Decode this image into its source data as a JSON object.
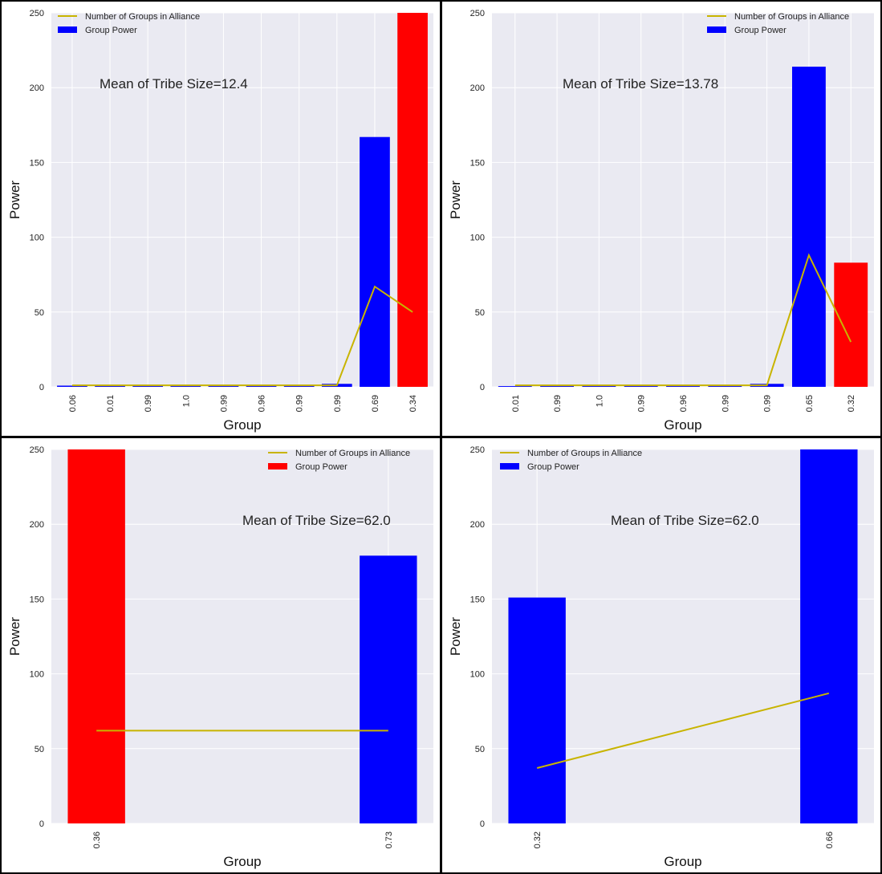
{
  "chart_data": [
    {
      "type": "bar",
      "xlabel": "Group",
      "ylabel": "Power",
      "ylim": [
        0,
        250
      ],
      "yticks": [
        "0",
        "50",
        "100",
        "150",
        "200",
        "250"
      ],
      "grid": true,
      "legend_position": "top-left",
      "annotation": "Mean of Tribe Size=12.4",
      "categories": [
        "0.06",
        "0.01",
        "0.99",
        "1.0",
        "0.99",
        "0.96",
        "0.99",
        "0.99",
        "0.69",
        "0.34"
      ],
      "series": [
        {
          "name": "Group Power",
          "kind": "bar",
          "values": [
            0.8,
            1.0,
            1.0,
            1.0,
            1.0,
            1.0,
            1.0,
            2.0,
            167,
            250
          ],
          "colors": [
            "#0000ff",
            "#0000ff",
            "#0000ff",
            "#0000ff",
            "#0000ff",
            "#0000ff",
            "#0000ff",
            "#0000ff",
            "#0000ff",
            "#ff0000"
          ]
        },
        {
          "name": "Number of Groups in Alliance",
          "kind": "line",
          "color": "#c8b400",
          "values": [
            1,
            1,
            1,
            1,
            1,
            1,
            1,
            1,
            67,
            50
          ]
        }
      ],
      "legend": [
        {
          "label": "Number of Groups in Alliance",
          "kind": "line",
          "color": "#c8b400"
        },
        {
          "label": "Group Power",
          "kind": "patch",
          "color": "#0000ff"
        }
      ]
    },
    {
      "type": "bar",
      "xlabel": "Group",
      "ylabel": "Power",
      "ylim": [
        0,
        250
      ],
      "yticks": [
        "0",
        "50",
        "100",
        "150",
        "200",
        "250"
      ],
      "grid": true,
      "legend_position": "top-right",
      "annotation": "Mean of Tribe Size=13.78",
      "categories": [
        "0.01",
        "0.99",
        "1.0",
        "0.99",
        "0.96",
        "0.99",
        "0.99",
        "0.65",
        "0.32"
      ],
      "series": [
        {
          "name": "Group Power",
          "kind": "bar",
          "values": [
            0.5,
            1.0,
            1.0,
            1.0,
            1.0,
            1.0,
            2.0,
            214,
            83
          ],
          "colors": [
            "#0000ff",
            "#0000ff",
            "#0000ff",
            "#0000ff",
            "#0000ff",
            "#0000ff",
            "#0000ff",
            "#0000ff",
            "#ff0000"
          ]
        },
        {
          "name": "Number of Groups in Alliance",
          "kind": "line",
          "color": "#c8b400",
          "values": [
            1,
            1,
            1,
            1,
            1,
            1,
            1,
            88,
            30
          ]
        }
      ],
      "legend": [
        {
          "label": "Number of Groups in Alliance",
          "kind": "line",
          "color": "#c8b400"
        },
        {
          "label": "Group Power",
          "kind": "patch",
          "color": "#0000ff"
        }
      ]
    },
    {
      "type": "bar",
      "xlabel": "Group",
      "ylabel": "Power",
      "ylim": [
        0,
        250
      ],
      "yticks": [
        "0",
        "50",
        "100",
        "150",
        "200",
        "250"
      ],
      "grid": true,
      "legend_position": "top-right",
      "annotation": "Mean of Tribe Size=62.0",
      "categories": [
        "0.36",
        "0.73"
      ],
      "series": [
        {
          "name": "Group Power",
          "kind": "bar",
          "values": [
            250,
            179
          ],
          "colors": [
            "#ff0000",
            "#0000ff"
          ]
        },
        {
          "name": "Number of Groups in Alliance",
          "kind": "line",
          "color": "#c8b400",
          "values": [
            62,
            62
          ]
        }
      ],
      "legend": [
        {
          "label": "Number of Groups in Alliance",
          "kind": "line",
          "color": "#c8b400"
        },
        {
          "label": "Group Power",
          "kind": "patch",
          "color": "#ff0000"
        }
      ]
    },
    {
      "type": "bar",
      "xlabel": "Group",
      "ylabel": "Power",
      "ylim": [
        0,
        250
      ],
      "yticks": [
        "0",
        "50",
        "100",
        "150",
        "200",
        "250"
      ],
      "grid": true,
      "legend_position": "top-left",
      "annotation": "Mean of Tribe Size=62.0",
      "categories": [
        "0.32",
        "0.66"
      ],
      "series": [
        {
          "name": "Group Power",
          "kind": "bar",
          "values": [
            151,
            250
          ],
          "colors": [
            "#0000ff",
            "#0000ff"
          ]
        },
        {
          "name": "Number of Groups in Alliance",
          "kind": "line",
          "color": "#c8b400",
          "values": [
            37,
            87
          ]
        }
      ],
      "legend": [
        {
          "label": "Number of Groups in Alliance",
          "kind": "line",
          "color": "#c8b400"
        },
        {
          "label": "Group Power",
          "kind": "patch",
          "color": "#0000ff"
        }
      ]
    }
  ]
}
